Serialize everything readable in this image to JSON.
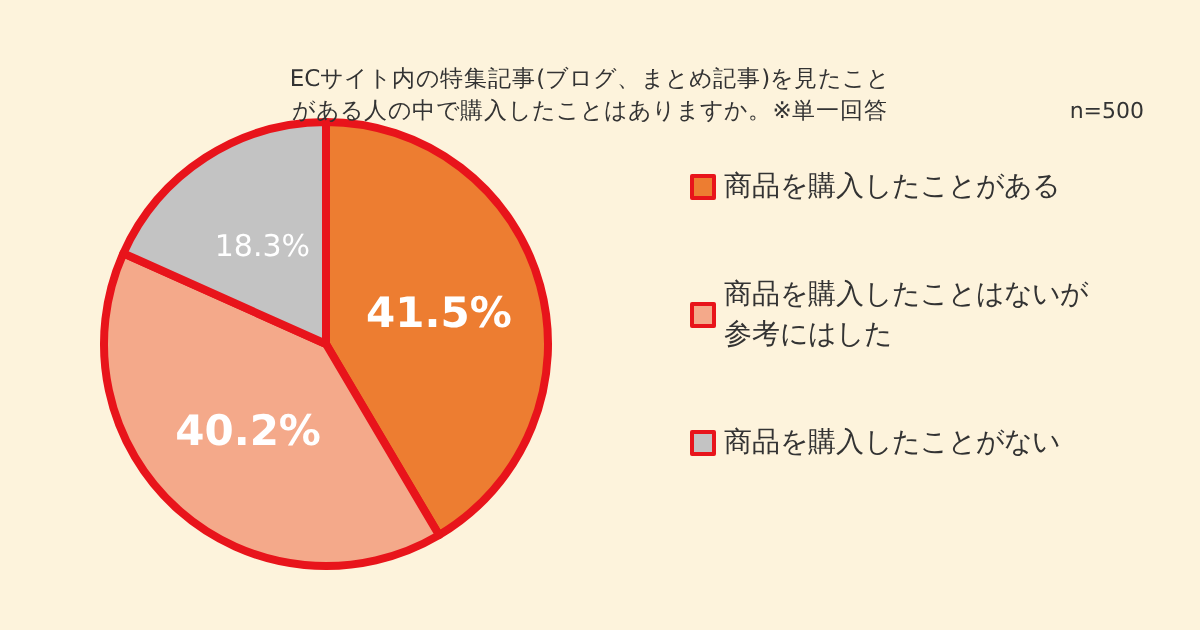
{
  "chart_data": {
    "type": "pie",
    "title": "ECサイト内の特集記事(ブログ、まとめ記事)を見たことがある人の中で購入したことはありますか。※単一回答",
    "annotations": [
      "n=500"
    ],
    "categories": [
      "商品を購入したことがある",
      "商品を購入したことはないが参考にはした",
      "商品を購入したことがない"
    ],
    "values": [
      41.5,
      40.2,
      18.3
    ],
    "colors": [
      "#ed7d31",
      "#f4a98a",
      "#c3c3c3"
    ],
    "value_labels": [
      "41.5%",
      "40.2%",
      "18.3%"
    ],
    "legend": "right"
  }
}
